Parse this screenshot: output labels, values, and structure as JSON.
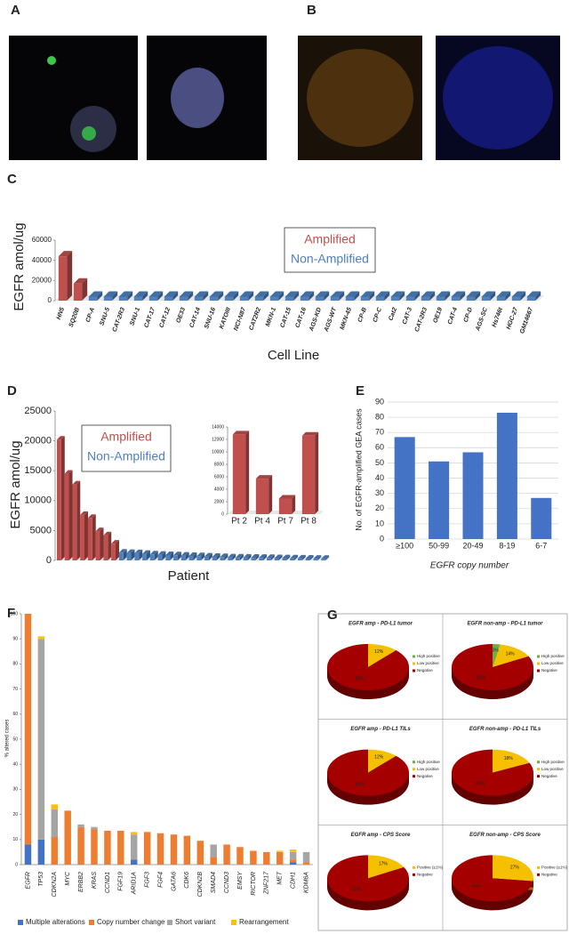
{
  "panels": [
    "A",
    "B",
    "C",
    "D",
    "E",
    "F",
    "G"
  ],
  "chart_data": [
    {
      "type": "bar",
      "y_label": "EGFR amol/ug",
      "x_label": "Cell Line",
      "categories": [
        "HN5",
        "SQ20B",
        "CP-A",
        "SNU-5",
        "CAT-2R3",
        "SNU-1",
        "CAT-17",
        "CAT-12",
        "OE33",
        "CAT-14",
        "SNU-16",
        "KATOIII",
        "NCI-N87",
        "CAT2R2",
        "MKN-1",
        "CAT-15",
        "CAT-16",
        "AGS-KD",
        "AGS-WT",
        "MKN-45",
        "CP-B",
        "CP-C",
        "Cat2",
        "CAT-3",
        "CAT-2R3",
        "OE19",
        "CAT-4",
        "CP-D",
        "AGS-SC",
        "Hs746t",
        "HGC-27",
        "GM14667"
      ],
      "series": [
        {
          "name": "Amplified",
          "color": "#c0504d",
          "values": [
            44000,
            17000,
            null,
            null,
            null,
            null,
            null,
            null,
            null,
            null,
            null,
            null,
            null,
            null,
            null,
            null,
            null,
            null,
            null,
            null,
            null,
            null,
            null,
            null,
            null,
            null,
            null,
            null,
            null,
            null,
            null,
            null
          ]
        },
        {
          "name": "Non-Amplified",
          "color": "#4f81bd",
          "values": [
            null,
            null,
            4000,
            4000,
            4000,
            4000,
            4000,
            4000,
            4000,
            4000,
            4000,
            4000,
            4000,
            4000,
            4000,
            4000,
            4000,
            4000,
            4000,
            4000,
            4000,
            4000,
            4000,
            4000,
            4000,
            4000,
            4000,
            4000,
            4000,
            4000,
            4000,
            4000
          ]
        }
      ],
      "ylim": [
        0,
        60000
      ],
      "yticks": [
        0,
        20000,
        40000,
        60000
      ],
      "grid": false
    },
    {
      "type": "bar",
      "y_label": "EGFR amol/ug",
      "x_label": "Patient",
      "categories": [
        null,
        null,
        null,
        null,
        null,
        null,
        null,
        null,
        null,
        null,
        null,
        null,
        null,
        null,
        null,
        null,
        null,
        null,
        null,
        null,
        null,
        null,
        null,
        null,
        null,
        null,
        null,
        null,
        null,
        null,
        null,
        null,
        null,
        null,
        null
      ],
      "series": [
        {
          "name": "Amplified",
          "color": "#c0504d",
          "values": [
            20200,
            14500,
            12700,
            7600,
            7100,
            4900,
            4200,
            2800,
            null,
            null,
            null,
            null,
            null,
            null,
            null,
            null,
            null,
            null,
            null,
            null,
            null,
            null,
            null,
            null,
            null,
            null,
            null,
            null,
            null,
            null,
            null,
            null,
            null,
            null,
            null
          ]
        },
        {
          "name": "Non-Amplified",
          "color": "#4f81bd",
          "values": [
            null,
            null,
            null,
            null,
            null,
            null,
            null,
            null,
            1300,
            1250,
            1200,
            1100,
            1000,
            950,
            900,
            850,
            800,
            750,
            700,
            650,
            600,
            550,
            500,
            480,
            460,
            440,
            420,
            400,
            380,
            360,
            340,
            320,
            300,
            280,
            260
          ]
        }
      ],
      "ylim": [
        0,
        25000
      ],
      "yticks": [
        0,
        5000,
        10000,
        15000,
        20000,
        25000
      ],
      "grid": false
    },
    {
      "type": "bar",
      "categories": [
        "Pt 2",
        "Pt 4",
        "Pt 7",
        "Pt 8"
      ],
      "values": [
        12800,
        5700,
        2500,
        12600
      ],
      "color": "#c0504d",
      "ylim": [
        0,
        14000
      ],
      "yticks": [
        0,
        2000,
        4000,
        6000,
        8000,
        10000,
        12000,
        14000
      ],
      "grid": false
    },
    {
      "type": "bar",
      "y_label": "No. of EGFR-amplified GEA cases",
      "x_label": "EGFR copy number",
      "categories": [
        "≥100",
        "50-99",
        "20-49",
        "8-19",
        "6-7"
      ],
      "values": [
        67,
        51,
        57,
        83,
        27
      ],
      "color": "#4472c4",
      "ylim": [
        0,
        90
      ],
      "yticks": [
        0,
        10,
        20,
        30,
        40,
        50,
        60,
        70,
        80,
        90
      ],
      "grid": true
    },
    {
      "type": "stacked_bar",
      "y_label": "% altered cases",
      "categories": [
        "EGFR",
        "TP53",
        "CDKN2A",
        "MYC",
        "ERBB2",
        "KRAS",
        "CCND1",
        "FGF19",
        "ARID1A",
        "FGF3",
        "FGF4",
        "GATA6",
        "CDK6",
        "CDKN2B",
        "SMAD4",
        "CCND3",
        "EMSY",
        "RICTOR",
        "ZNF217",
        "MET",
        "CDH1",
        "KDM6A"
      ],
      "series": [
        {
          "name": "Multiple alterations",
          "color": "#4472c4",
          "values": [
            8,
            10,
            0,
            0,
            0,
            0,
            0,
            0,
            2,
            0,
            0,
            0,
            0,
            0,
            0,
            0,
            0,
            0,
            0,
            0,
            1,
            0
          ]
        },
        {
          "name": "Copy number change",
          "color": "#ed7d31",
          "values": [
            92,
            0,
            11,
            21.5,
            15,
            14,
            13.5,
            13.5,
            0,
            13,
            12.5,
            12,
            11.5,
            9.5,
            3,
            8,
            7,
            5.5,
            5,
            5,
            1,
            1
          ]
        },
        {
          "name": "Short variant",
          "color": "#a5a5a5",
          "values": [
            0,
            80,
            11,
            0,
            1,
            1,
            0,
            0,
            10,
            0,
            0,
            0,
            0,
            0,
            5,
            0,
            0,
            0,
            0,
            0,
            3,
            4
          ]
        },
        {
          "name": "Rearrangement",
          "color": "#ffc000",
          "values": [
            0,
            1,
            2,
            0,
            0,
            0,
            0,
            0,
            1,
            0,
            0,
            0,
            0,
            0,
            0,
            0,
            0,
            0,
            0,
            0.5,
            1,
            0
          ]
        }
      ],
      "ylim": [
        0,
        100
      ],
      "yticks": [
        0,
        10,
        20,
        30,
        40,
        50,
        60,
        70,
        80,
        90,
        100
      ],
      "grid": false
    },
    {
      "type": "pie",
      "title": "EGFR amp - PD-L1 tumor",
      "categories": [
        "High positive",
        "Low positive",
        "Negative"
      ],
      "values": [
        0,
        12,
        88
      ],
      "value_labels": [
        null,
        "12%",
        "88%"
      ],
      "colors": [
        "#70ad47",
        "#f5c000",
        "#a50000"
      ]
    },
    {
      "type": "pie",
      "title": "EGFR non-amp - PD-L1 tumor",
      "categories": [
        "High positive",
        "Low positive",
        "Negative"
      ],
      "values": [
        3,
        14,
        82
      ],
      "value_labels": [
        "3%",
        "14%",
        "82%"
      ],
      "colors": [
        "#70ad47",
        "#f5c000",
        "#a50000"
      ]
    },
    {
      "type": "pie",
      "title": "EGFR amp - PD-L1 TILs",
      "categories": [
        "High positive",
        "Low positive",
        "Negative"
      ],
      "values": [
        0,
        12,
        88
      ],
      "value_labels": [
        null,
        "12%",
        "88%"
      ],
      "colors": [
        "#70ad47",
        "#f5c000",
        "#a50000"
      ]
    },
    {
      "type": "pie",
      "title": "EGFR non-amp - PD-L1 TILs",
      "categories": [
        "High positive",
        "Low positive",
        "Negative"
      ],
      "values": [
        0,
        18,
        82
      ],
      "value_labels": [
        null,
        "18%",
        "82%"
      ],
      "colors": [
        "#70ad47",
        "#f5c000",
        "#a50000"
      ]
    },
    {
      "type": "pie",
      "title": "EGFR amp - CPS Score",
      "categories": [
        "Positive (≥1%)",
        "Negative"
      ],
      "values": [
        17,
        83
      ],
      "value_labels": [
        "17%",
        "83%"
      ],
      "colors": [
        "#f5c000",
        "#a50000"
      ]
    },
    {
      "type": "pie",
      "title": "EGFR non-amp - CPS Score",
      "categories": [
        "Positive (≥1%)",
        "Negative"
      ],
      "values": [
        27,
        73
      ],
      "value_labels": [
        "27%",
        "73%"
      ],
      "colors": [
        "#f5c000",
        "#a50000"
      ]
    }
  ]
}
